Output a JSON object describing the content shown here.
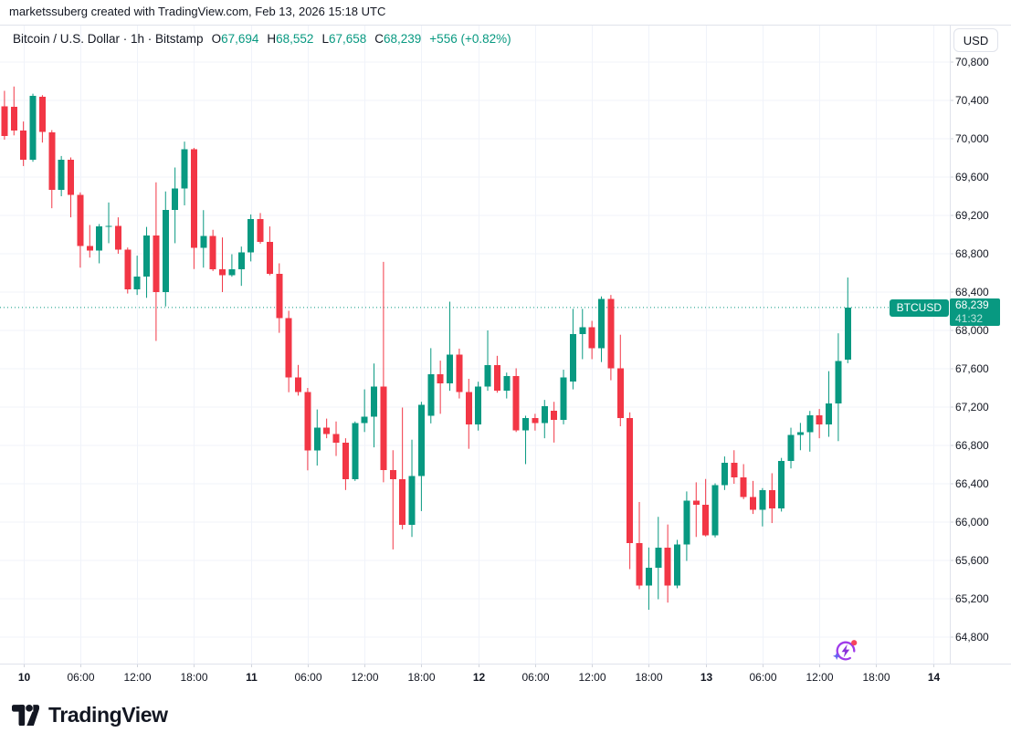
{
  "attribution": "marketssuberg created with TradingView.com, Feb 13, 2026 15:18 UTC",
  "header": {
    "title": "Bitcoin / U.S. Dollar · 1h · Bitstamp",
    "ohlc": [
      {
        "label": "O",
        "value": "67,694"
      },
      {
        "label": "H",
        "value": "68,552"
      },
      {
        "label": "L",
        "value": "67,658"
      },
      {
        "label": "C",
        "value": "68,239"
      }
    ],
    "change": "+556 (+0.82%)"
  },
  "axis": {
    "currency_button": "USD",
    "price_labels": [
      "70,800",
      "70,400",
      "70,000",
      "69,600",
      "69,200",
      "68,800",
      "68,400",
      "68,000",
      "67,600",
      "67,200",
      "66,800",
      "66,400",
      "66,000",
      "65,600",
      "65,200",
      "64,800"
    ],
    "time_labels": [
      {
        "text": "10",
        "bold": true
      },
      {
        "text": "06:00",
        "bold": false
      },
      {
        "text": "12:00",
        "bold": false
      },
      {
        "text": "18:00",
        "bold": false
      },
      {
        "text": "11",
        "bold": true
      },
      {
        "text": "06:00",
        "bold": false
      },
      {
        "text": "12:00",
        "bold": false
      },
      {
        "text": "18:00",
        "bold": false
      },
      {
        "text": "12",
        "bold": true
      },
      {
        "text": "06:00",
        "bold": false
      },
      {
        "text": "12:00",
        "bold": false
      },
      {
        "text": "18:00",
        "bold": false
      },
      {
        "text": "13",
        "bold": true
      },
      {
        "text": "06:00",
        "bold": false
      },
      {
        "text": "12:00",
        "bold": false
      },
      {
        "text": "18:00",
        "bold": false
      },
      {
        "text": "14",
        "bold": true
      }
    ]
  },
  "price_line": {
    "symbol_badge": "BTCUSD",
    "price": "68,239",
    "countdown": "41:32",
    "value": 68239
  },
  "colors": {
    "up": "#089981",
    "down": "#F23645",
    "grid": "#F0F3FA",
    "border": "#E0E3EB",
    "tick": "#D1D4DC",
    "text": "#131722"
  },
  "logo": {
    "text": "TradingView"
  },
  "icons": {
    "bottom_marker": "ai-lightning-circle-icon",
    "logo_mark": "tradingview-mark-icon"
  },
  "chart_data": {
    "type": "candlestick",
    "title": "Bitcoin / U.S. Dollar",
    "symbol": "BTCUSD",
    "exchange": "Bitstamp",
    "timeframe": "1h",
    "currency": "USD",
    "last_price": 68239,
    "price_axis": {
      "max_label": 70800,
      "min_label": 64800,
      "step": 400
    },
    "grid": true,
    "columns": [
      "day",
      "time",
      "open",
      "high",
      "low",
      "close"
    ],
    "candles": [
      [
        "Feb 9",
        "22:00",
        70340,
        70500,
        69990,
        70030
      ],
      [
        "Feb 9",
        "23:00",
        70335,
        70545,
        70035,
        70085
      ],
      [
        "Feb 10",
        "00:00",
        70085,
        70180,
        69715,
        69780
      ],
      [
        "Feb 10",
        "01:00",
        69780,
        70470,
        69760,
        70450
      ],
      [
        "Feb 10",
        "02:00",
        70440,
        70455,
        69960,
        70070
      ],
      [
        "Feb 10",
        "03:00",
        70065,
        70090,
        69275,
        69465
      ],
      [
        "Feb 10",
        "04:00",
        69465,
        69820,
        69400,
        69780
      ],
      [
        "Feb 10",
        "05:00",
        69780,
        69805,
        69180,
        69415
      ],
      [
        "Feb 10",
        "06:00",
        69415,
        69440,
        68655,
        68880
      ],
      [
        "Feb 10",
        "07:00",
        68880,
        69100,
        68760,
        68835
      ],
      [
        "Feb 10",
        "08:00",
        68835,
        69110,
        68700,
        69085
      ],
      [
        "Feb 10",
        "09:00",
        69085,
        69335,
        68910,
        69090
      ],
      [
        "Feb 10",
        "10:00",
        69090,
        69180,
        68800,
        68845
      ],
      [
        "Feb 10",
        "11:00",
        68845,
        68865,
        68385,
        68430
      ],
      [
        "Feb 10",
        "12:00",
        68430,
        68780,
        68370,
        68560
      ],
      [
        "Feb 10",
        "13:00",
        68560,
        69080,
        68340,
        68990
      ],
      [
        "Feb 10",
        "14:00",
        68990,
        69545,
        67890,
        68400
      ],
      [
        "Feb 10",
        "15:00",
        68400,
        69450,
        68250,
        69255
      ],
      [
        "Feb 10",
        "16:00",
        69255,
        69700,
        68910,
        69480
      ],
      [
        "Feb 10",
        "17:00",
        69480,
        69970,
        69305,
        69890
      ],
      [
        "Feb 10",
        "18:00",
        69890,
        69905,
        68640,
        68860
      ],
      [
        "Feb 10",
        "19:00",
        68860,
        69255,
        68655,
        68985
      ],
      [
        "Feb 10",
        "20:00",
        68985,
        69050,
        68620,
        68640
      ],
      [
        "Feb 10",
        "21:00",
        68640,
        68970,
        68400,
        68575
      ],
      [
        "Feb 10",
        "22:00",
        68575,
        68795,
        68560,
        68640
      ],
      [
        "Feb 10",
        "23:00",
        68640,
        68875,
        68465,
        68815
      ],
      [
        "Feb 11",
        "00:00",
        68815,
        69210,
        68720,
        69160
      ],
      [
        "Feb 11",
        "01:00",
        69160,
        69225,
        68905,
        68925
      ],
      [
        "Feb 11",
        "02:00",
        68925,
        69085,
        68575,
        68590
      ],
      [
        "Feb 11",
        "03:00",
        68590,
        68700,
        67975,
        68130
      ],
      [
        "Feb 11",
        "04:00",
        68130,
        68205,
        67355,
        67510
      ],
      [
        "Feb 11",
        "05:00",
        67510,
        67640,
        67320,
        67355
      ],
      [
        "Feb 11",
        "06:00",
        67355,
        67400,
        66540,
        66750
      ],
      [
        "Feb 11",
        "07:00",
        66750,
        67175,
        66590,
        66985
      ],
      [
        "Feb 11",
        "08:00",
        66985,
        67080,
        66875,
        66920
      ],
      [
        "Feb 11",
        "09:00",
        66920,
        67050,
        66690,
        66830
      ],
      [
        "Feb 11",
        "10:00",
        66830,
        66875,
        66335,
        66450
      ],
      [
        "Feb 11",
        "11:00",
        66450,
        67050,
        66430,
        67035
      ],
      [
        "Feb 11",
        "12:00",
        67035,
        67385,
        66940,
        67100
      ],
      [
        "Feb 11",
        "13:00",
        67100,
        67655,
        66780,
        67415
      ],
      [
        "Feb 11",
        "14:00",
        67415,
        68715,
        66415,
        66545
      ],
      [
        "Feb 11",
        "15:00",
        66545,
        66750,
        65715,
        66450
      ],
      [
        "Feb 11",
        "16:00",
        66450,
        67195,
        65925,
        65970
      ],
      [
        "Feb 11",
        "17:00",
        65970,
        66860,
        65845,
        66480
      ],
      [
        "Feb 11",
        "18:00",
        66480,
        67255,
        66115,
        67225
      ],
      [
        "Feb 11",
        "19:00",
        67110,
        67815,
        67030,
        67545
      ],
      [
        "Feb 11",
        "20:00",
        67545,
        67685,
        67130,
        67450
      ],
      [
        "Feb 11",
        "21:00",
        67450,
        68300,
        67370,
        67750
      ],
      [
        "Feb 11",
        "22:00",
        67750,
        67810,
        67290,
        67355
      ],
      [
        "Feb 11",
        "23:00",
        67355,
        67495,
        66765,
        67020
      ],
      [
        "Feb 12",
        "00:00",
        67020,
        67465,
        66955,
        67415
      ],
      [
        "Feb 12",
        "01:00",
        67415,
        68000,
        67370,
        67640
      ],
      [
        "Feb 12",
        "02:00",
        67640,
        67735,
        67350,
        67370
      ],
      [
        "Feb 12",
        "03:00",
        67370,
        67560,
        67290,
        67525
      ],
      [
        "Feb 12",
        "04:00",
        67525,
        67605,
        66940,
        66955
      ],
      [
        "Feb 12",
        "05:00",
        66955,
        67110,
        66605,
        67085
      ],
      [
        "Feb 12",
        "06:00",
        67085,
        67130,
        66955,
        67035
      ],
      [
        "Feb 12",
        "07:00",
        67035,
        67275,
        66875,
        67210
      ],
      [
        "Feb 12",
        "08:00",
        67160,
        67255,
        66830,
        67065
      ],
      [
        "Feb 12",
        "09:00",
        67065,
        67590,
        67020,
        67510
      ],
      [
        "Feb 12",
        "10:00",
        67465,
        68225,
        67385,
        67960
      ],
      [
        "Feb 12",
        "11:00",
        67960,
        68225,
        67700,
        68035
      ],
      [
        "Feb 12",
        "12:00",
        68035,
        68100,
        67700,
        67815
      ],
      [
        "Feb 12",
        "13:00",
        67815,
        68355,
        67670,
        68330
      ],
      [
        "Feb 12",
        "14:00",
        68330,
        68370,
        67480,
        67605
      ],
      [
        "Feb 12",
        "15:00",
        67605,
        67955,
        67000,
        67085
      ],
      [
        "Feb 12",
        "16:00",
        67085,
        67145,
        65510,
        65780
      ],
      [
        "Feb 12",
        "17:00",
        65780,
        66210,
        65300,
        65340
      ],
      [
        "Feb 12",
        "18:00",
        65340,
        65735,
        65085,
        65525
      ],
      [
        "Feb 12",
        "19:00",
        65525,
        66055,
        65195,
        65735
      ],
      [
        "Feb 12",
        "20:00",
        65735,
        65975,
        65160,
        65340
      ],
      [
        "Feb 12",
        "21:00",
        65340,
        65815,
        65310,
        65765
      ],
      [
        "Feb 12",
        "22:00",
        65765,
        66320,
        65595,
        66225
      ],
      [
        "Feb 12",
        "23:00",
        66225,
        66415,
        65845,
        66180
      ],
      [
        "Feb 13",
        "00:00",
        66180,
        66450,
        65850,
        65860
      ],
      [
        "Feb 13",
        "01:00",
        65860,
        66405,
        65840,
        66385
      ],
      [
        "Feb 13",
        "02:00",
        66385,
        66685,
        66335,
        66620
      ],
      [
        "Feb 13",
        "03:00",
        66620,
        66750,
        66400,
        66465
      ],
      [
        "Feb 13",
        "04:00",
        66465,
        66605,
        66240,
        66260
      ],
      [
        "Feb 13",
        "05:00",
        66260,
        66430,
        66085,
        66130
      ],
      [
        "Feb 13",
        "06:00",
        66130,
        66355,
        65955,
        66335
      ],
      [
        "Feb 13",
        "07:00",
        66335,
        66510,
        65990,
        66145
      ],
      [
        "Feb 13",
        "08:00",
        66145,
        66670,
        66110,
        66640
      ],
      [
        "Feb 13",
        "09:00",
        66640,
        66985,
        66560,
        66910
      ],
      [
        "Feb 13",
        "10:00",
        66910,
        67035,
        66750,
        66940
      ],
      [
        "Feb 13",
        "11:00",
        66940,
        67160,
        66735,
        67115
      ],
      [
        "Feb 13",
        "12:00",
        67115,
        67180,
        66875,
        67020
      ],
      [
        "Feb 13",
        "13:00",
        67020,
        67575,
        66890,
        67240
      ],
      [
        "Feb 13",
        "14:00",
        67240,
        67970,
        66845,
        67683
      ],
      [
        "Feb 13",
        "15:00",
        67694,
        68552,
        67658,
        68239
      ]
    ]
  }
}
